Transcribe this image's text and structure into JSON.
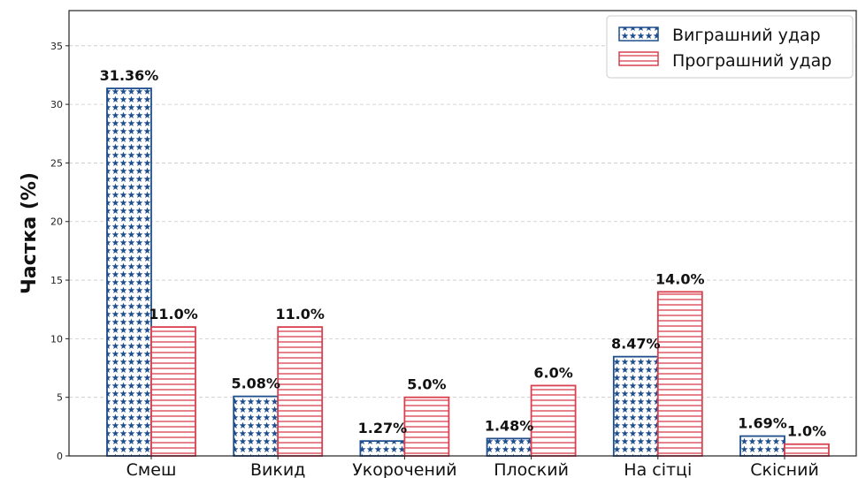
{
  "chart_data": {
    "type": "bar",
    "title": "",
    "xlabel": "",
    "ylabel": "Частка (%)",
    "ylim": [
      0,
      38
    ],
    "yticks": [
      0,
      5,
      10,
      15,
      20,
      25,
      30,
      35
    ],
    "grid": "horizontal dashed",
    "legend_position": "top-right",
    "categories": [
      "Смеш",
      "Викид",
      "Укорочений",
      "Плоский",
      "На сітці",
      "Скісний"
    ],
    "series": [
      {
        "name": "Виграшний удар",
        "values": [
          31.36,
          5.08,
          1.27,
          1.48,
          8.47,
          1.69
        ],
        "labels": [
          "31.36%",
          "5.08%",
          "1.27%",
          "1.48%",
          "8.47%",
          "1.69%"
        ],
        "color": "#1f4e8c",
        "pattern": "stars"
      },
      {
        "name": "Програшний удар",
        "values": [
          11.0,
          11.0,
          5.0,
          6.0,
          14.0,
          1.0
        ],
        "labels": [
          "11.0%",
          "11.0%",
          "5.0%",
          "6.0%",
          "14.0%",
          "1.0%"
        ],
        "color": "#d9404f",
        "pattern": "horizontal-lines"
      }
    ]
  }
}
